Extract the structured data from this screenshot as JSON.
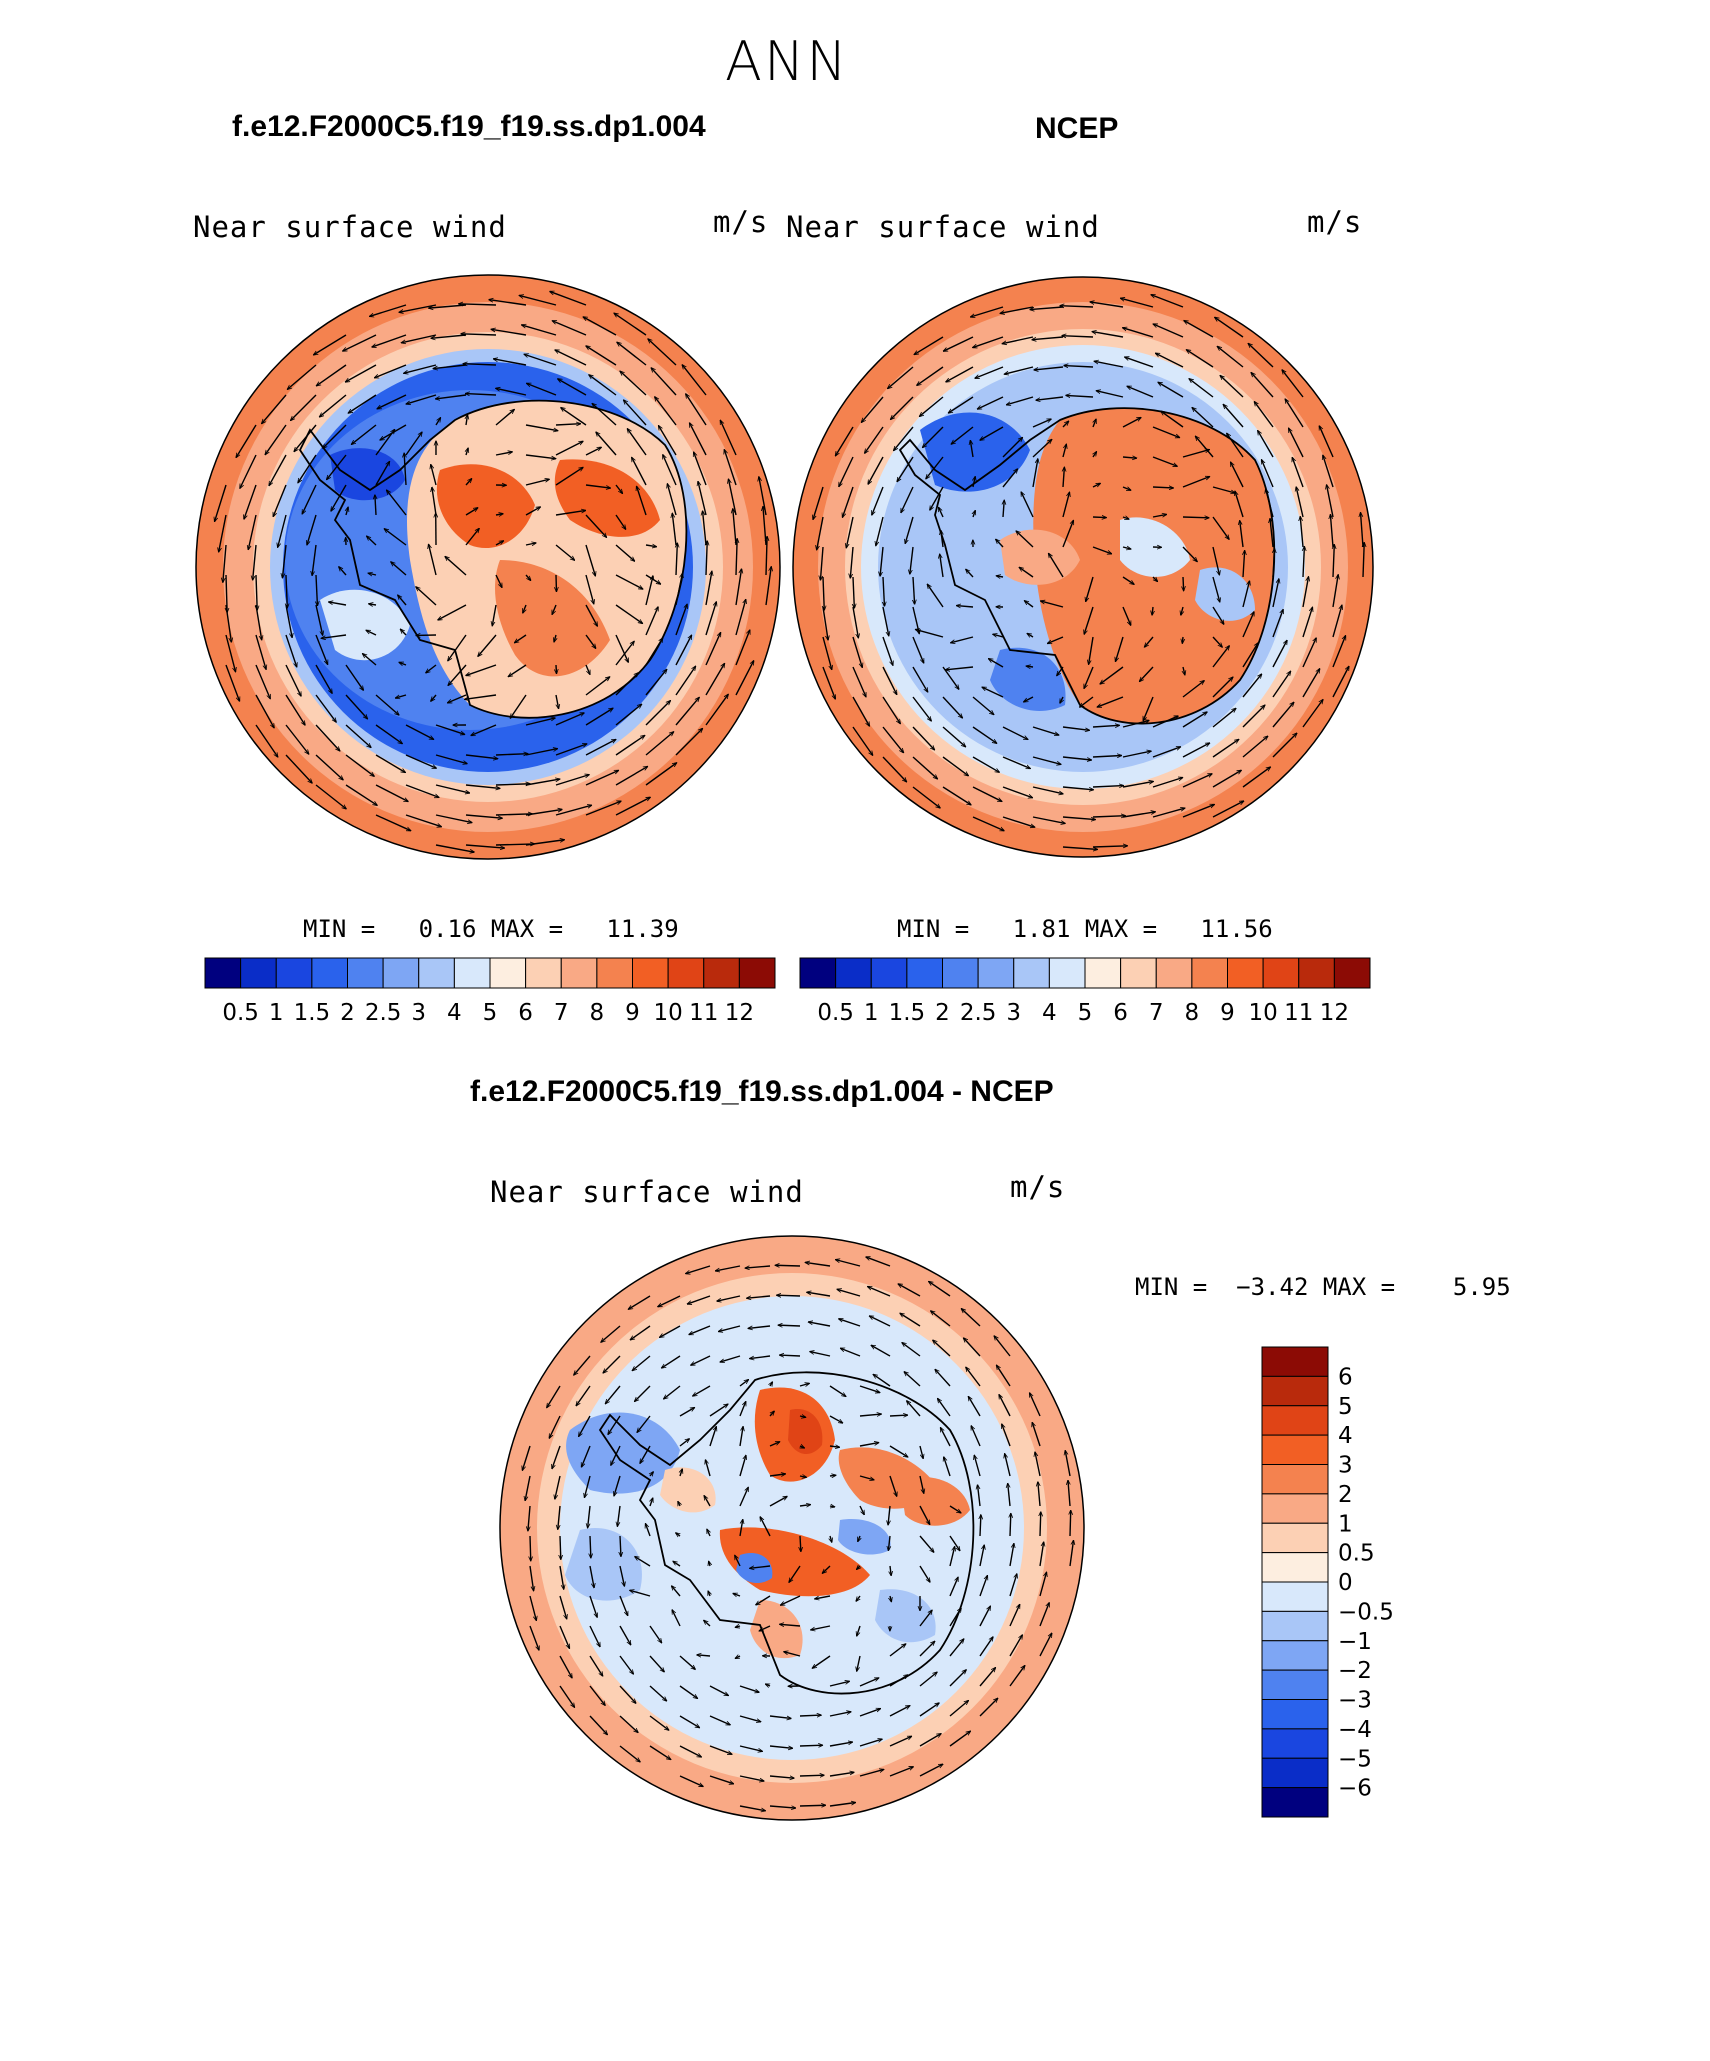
{
  "main_title": "ANN",
  "panels": [
    {
      "title": "f.e12.F2000C5.f19_f19.ss.dp1.004",
      "variable": "Near surface wind",
      "units": "m/s",
      "stats_text": "MIN =   0.16 MAX =   11.39",
      "min": 0.16,
      "max": 11.39
    },
    {
      "title": "NCEP",
      "variable": "Near surface wind",
      "units": "m/s",
      "stats_text": "MIN =   1.81 MAX =   11.56",
      "min": 1.81,
      "max": 11.56
    },
    {
      "title": "f.e12.F2000C5.f19_f19.ss.dp1.004 - NCEP",
      "variable": "Near surface wind",
      "units": "m/s",
      "stats_text": "MIN =  −3.42 MAX =    5.95",
      "min": -3.42,
      "max": 5.95
    }
  ],
  "speed_colorbar": {
    "labels": [
      "0.5",
      "1",
      "1.5",
      "2",
      "2.5",
      "3",
      "4",
      "5",
      "6",
      "7",
      "8",
      "9",
      "10",
      "11",
      "12"
    ],
    "colors": [
      "#00007f",
      "#0a2dc8",
      "#1a46e0",
      "#2a62ec",
      "#4f82f0",
      "#7ea6f4",
      "#a9c6f7",
      "#d8e8fb",
      "#fdeee0",
      "#fcd0b4",
      "#f9a985",
      "#f4824f",
      "#f25f24",
      "#e04416",
      "#b92a0c",
      "#8c0b05"
    ]
  },
  "diff_colorbar": {
    "labels": [
      "6",
      "5",
      "4",
      "3",
      "2",
      "1",
      "0.5",
      "0",
      "−0.5",
      "−1",
      "−2",
      "−3",
      "−4",
      "−5",
      "−6"
    ],
    "colors": [
      "#8c0b05",
      "#b92a0c",
      "#e04416",
      "#f25f24",
      "#f4824f",
      "#f9a985",
      "#fcd0b4",
      "#fdeee0",
      "#d8e8fb",
      "#a9c6f7",
      "#7ea6f4",
      "#4f82f0",
      "#2a62ec",
      "#1a46e0",
      "#0a2dc8",
      "#00007f"
    ]
  }
}
